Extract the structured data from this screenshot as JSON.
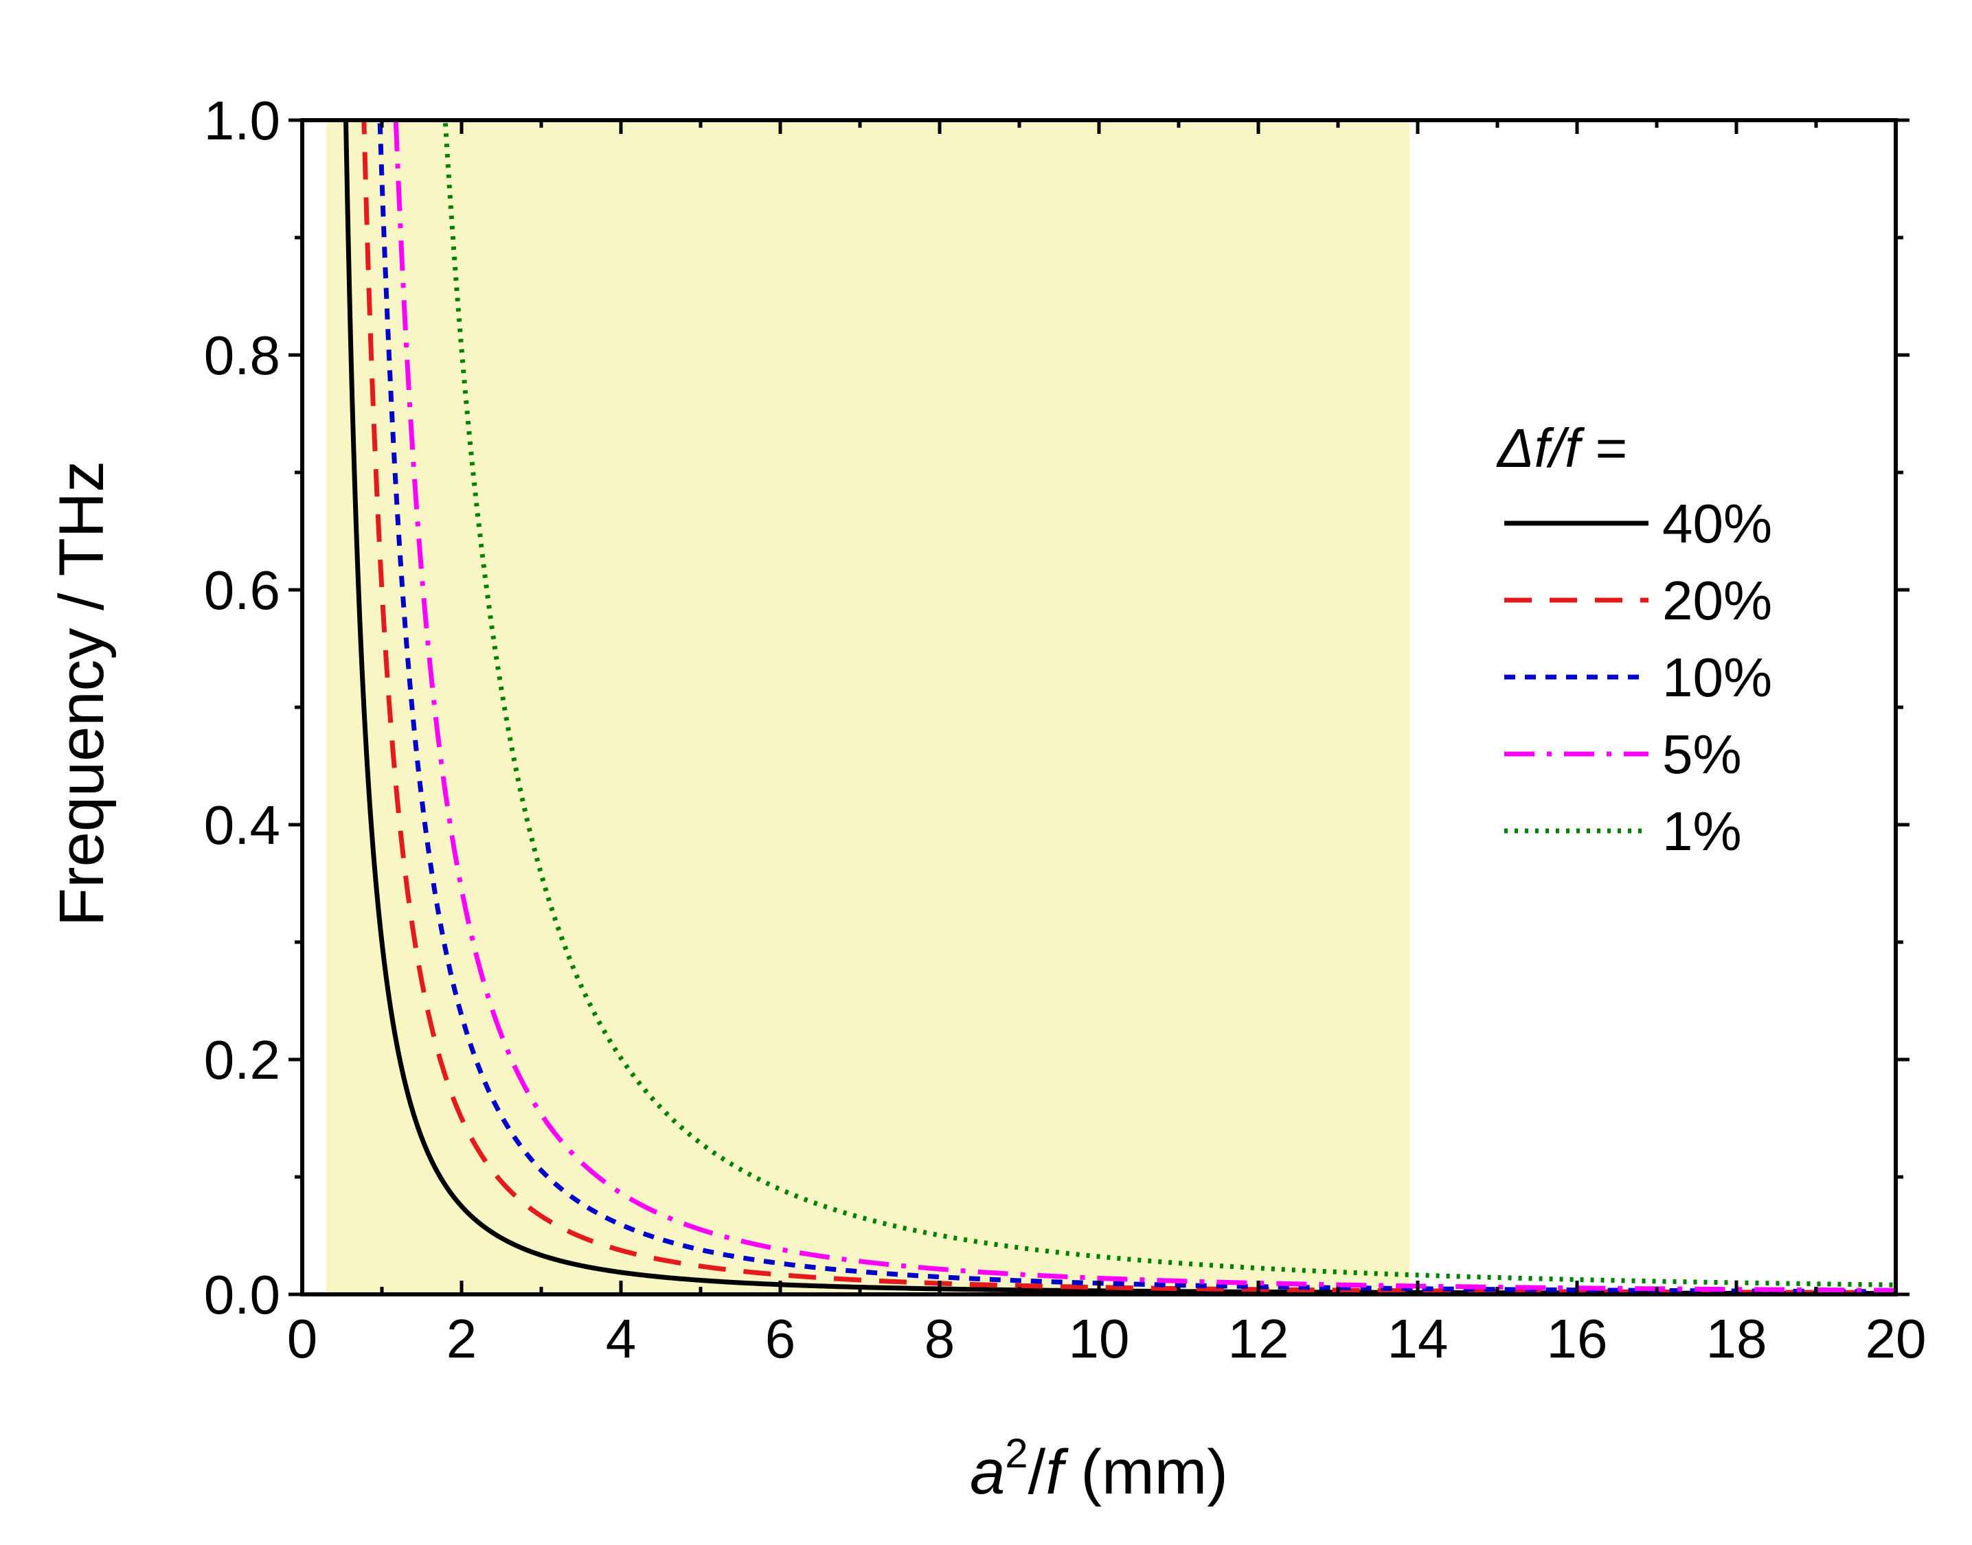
{
  "chart_data": {
    "type": "line",
    "xlabel": {
      "main": "a",
      "sup": "2",
      "slash": "/",
      "f": "f",
      "unit": " (mm)"
    },
    "ylabel": "Frequency / THz",
    "xlim": [
      0,
      20
    ],
    "ylim": [
      0,
      1.0
    ],
    "xticks": [
      "0",
      "2",
      "4",
      "6",
      "8",
      "10",
      "12",
      "14",
      "16",
      "18",
      "20"
    ],
    "yticks": [
      "0.0",
      "0.2",
      "0.4",
      "0.6",
      "0.8",
      "1.0"
    ],
    "shaded_region": {
      "x": [
        0.3,
        13.9
      ],
      "color": "#f8f6c5"
    },
    "legend": {
      "title_delta": "Δ",
      "title_f1": "f",
      "title_slash": "/",
      "title_f2": "f",
      "title_eq": " =",
      "placement": "center-right"
    },
    "series": [
      {
        "name": "40%",
        "k": 0.3,
        "color": "#000000",
        "dash": "none"
      },
      {
        "name": "20%",
        "k": 0.6,
        "color": "#e41a1c",
        "dash": "dashed"
      },
      {
        "name": "10%",
        "k": 0.95,
        "color": "#0000cc",
        "dash": "short-dashed"
      },
      {
        "name": "5%",
        "k": 1.38,
        "color": "#ff00ff",
        "dash": "dash-dot"
      },
      {
        "name": "1%",
        "k": 3.22,
        "color": "#008000",
        "dash": "dotted"
      }
    ]
  }
}
